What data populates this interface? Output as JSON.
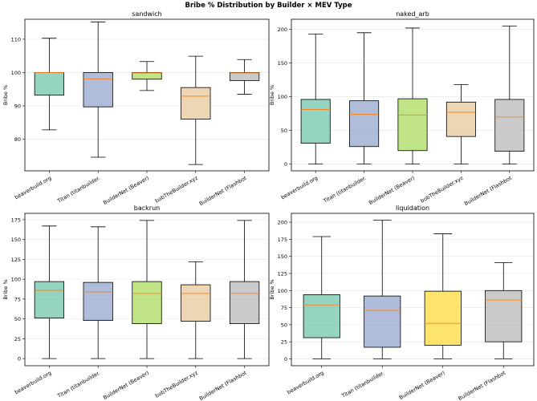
{
  "figure": {
    "title": "Bribe % Distribution by Builder × MEV Type"
  },
  "chart_data": [
    {
      "type": "box",
      "title": "sandwich",
      "xlabel": "",
      "ylabel": "Bribe %",
      "ylim": [
        70.5,
        116
      ],
      "yticks": [
        80,
        90,
        100,
        110
      ],
      "grid": "y",
      "categories": [
        "beaverbuild.org",
        "Titan (titanbuilder.",
        "BuilderNet (Beaver)",
        "bobTheBuilder.xyz",
        "BuilderNet (Flashbot"
      ],
      "boxes": [
        {
          "whislo": 82.8,
          "q1": 93.2,
          "med": 100.0,
          "q3": 100.0,
          "whishi": 110.3,
          "color": "#66c2a5"
        },
        {
          "whislo": 74.6,
          "q1": 89.7,
          "med": 98.1,
          "q3": 100.0,
          "whishi": 115.2,
          "color": "#8da0cb"
        },
        {
          "whislo": 94.6,
          "q1": 98.0,
          "med": 99.9,
          "q3": 100.0,
          "whishi": 103.3,
          "color": "#a6d854"
        },
        {
          "whislo": 72.4,
          "q1": 86.0,
          "med": 92.9,
          "q3": 95.5,
          "whishi": 104.9,
          "color": "#e5c494"
        },
        {
          "whislo": 93.5,
          "q1": 97.6,
          "med": 99.9,
          "q3": 100.0,
          "whishi": 103.9,
          "color": "#b3b3b3"
        }
      ]
    },
    {
      "type": "box",
      "title": "naked_arb",
      "xlabel": "",
      "ylabel": "Bribe %",
      "ylim": [
        -10,
        215
      ],
      "yticks": [
        0,
        50,
        100,
        150,
        200
      ],
      "grid": "y",
      "categories": [
        "beaverbuild.org",
        "Titan (titanbuilder.",
        "BuilderNet (Beaver)",
        "bobTheBuilder.xyz",
        "BuilderNet (Flashbot"
      ],
      "boxes": [
        {
          "whislo": 0,
          "q1": 31,
          "med": 81,
          "q3": 96,
          "whishi": 193,
          "color": "#66c2a5"
        },
        {
          "whislo": 0,
          "q1": 26,
          "med": 74,
          "q3": 94,
          "whishi": 195,
          "color": "#8da0cb"
        },
        {
          "whislo": 0,
          "q1": 20,
          "med": 73,
          "q3": 97,
          "whishi": 202,
          "color": "#a6d854"
        },
        {
          "whislo": 0,
          "q1": 41,
          "med": 77,
          "q3": 92,
          "whishi": 118,
          "color": "#e5c494"
        },
        {
          "whislo": 0,
          "q1": 19,
          "med": 70,
          "q3": 96,
          "whishi": 205,
          "color": "#b3b3b3"
        }
      ]
    },
    {
      "type": "box",
      "title": "backrun",
      "xlabel": "",
      "ylabel": "Bribe %",
      "ylim": [
        -9,
        183
      ],
      "yticks": [
        0,
        25,
        50,
        75,
        100,
        125,
        150,
        175
      ],
      "grid": "y",
      "categories": [
        "beaverbuild.org",
        "Titan (titanbuilder.",
        "BuilderNet (Beaver)",
        "bobTheBuilder.xyz",
        "BuilderNet (Flashbot"
      ],
      "boxes": [
        {
          "whislo": 0,
          "q1": 51,
          "med": 86,
          "q3": 97,
          "whishi": 167,
          "color": "#66c2a5"
        },
        {
          "whislo": 0,
          "q1": 48,
          "med": 84,
          "q3": 96,
          "whishi": 166,
          "color": "#8da0cb"
        },
        {
          "whislo": 0,
          "q1": 44,
          "med": 82,
          "q3": 97,
          "whishi": 174,
          "color": "#a6d854"
        },
        {
          "whislo": 0,
          "q1": 47,
          "med": 82,
          "q3": 93,
          "whishi": 122,
          "color": "#e5c494"
        },
        {
          "whislo": 0,
          "q1": 44,
          "med": 82,
          "q3": 97,
          "whishi": 174,
          "color": "#b3b3b3"
        }
      ]
    },
    {
      "type": "box",
      "title": "liquidation",
      "xlabel": "",
      "ylabel": "Bribe %",
      "ylim": [
        -10,
        213
      ],
      "yticks": [
        0,
        25,
        50,
        75,
        100,
        125,
        150,
        175,
        200
      ],
      "grid": "y",
      "categories": [
        "beaverbuild.org",
        "Titan (titanbuilder.",
        "BuilderNet (Beaver)",
        "BuilderNet (Flashbot"
      ],
      "boxes": [
        {
          "whislo": 0,
          "q1": 31,
          "med": 79,
          "q3": 94,
          "whishi": 179,
          "color": "#66c2a5"
        },
        {
          "whislo": 0,
          "q1": 17,
          "med": 71,
          "q3": 92,
          "whishi": 203,
          "color": "#8da0cb"
        },
        {
          "whislo": 0,
          "q1": 20,
          "med": 52,
          "q3": 99,
          "whishi": 183,
          "color": "#ffd92f"
        },
        {
          "whislo": 0,
          "q1": 25,
          "med": 86,
          "q3": 100,
          "whishi": 141,
          "color": "#b3b3b3"
        }
      ]
    }
  ]
}
